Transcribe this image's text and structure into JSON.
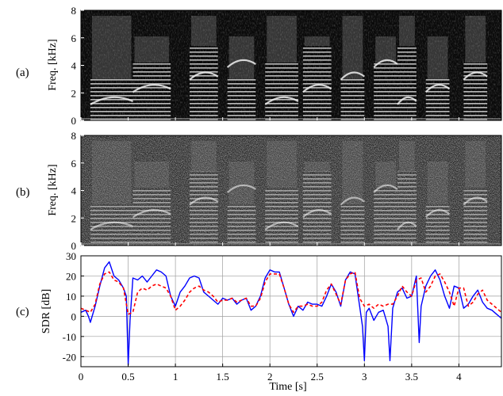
{
  "figure": {
    "panels": [
      {
        "label": "(a)",
        "ylabel": "Freq. [kHz]",
        "yticks": [
          "0",
          "2",
          "4",
          "6",
          "8"
        ]
      },
      {
        "label": "(b)",
        "ylabel": "Freq. [kHz]",
        "yticks": [
          "0",
          "2",
          "4",
          "6",
          "8"
        ]
      },
      {
        "label": "(c)",
        "ylabel": "SDR [dB]",
        "yticks": [
          "-20",
          "-10",
          "0",
          "10",
          "20",
          "30"
        ]
      }
    ],
    "xlabel": "Time [s]",
    "xticks": [
      "0",
      "0.5",
      "1",
      "1.5",
      "2",
      "2.5",
      "3",
      "3.5",
      "4"
    ]
  },
  "chart_data": [
    {
      "type": "heatmap",
      "panel": "(a)",
      "description_visible": "spectrogram",
      "ylabel": "Freq. [kHz]",
      "ylim": [
        0,
        8
      ],
      "xlim": [
        0,
        4.45
      ],
      "colormap": "gray",
      "speech_segments_s": [
        [
          0.1,
          0.55
        ],
        [
          0.55,
          0.95
        ],
        [
          1.15,
          1.45
        ],
        [
          1.55,
          1.85
        ],
        [
          1.95,
          2.3
        ],
        [
          2.35,
          2.65
        ],
        [
          2.75,
          3.0
        ],
        [
          3.1,
          3.35
        ],
        [
          3.35,
          3.55
        ],
        [
          3.65,
          3.9
        ],
        [
          4.05,
          4.3
        ]
      ]
    },
    {
      "type": "heatmap",
      "panel": "(b)",
      "ylabel": "Freq. [kHz]",
      "ylim": [
        0,
        8
      ],
      "xlim": [
        0,
        4.45
      ],
      "colormap": "gray",
      "speech_segments_s": [
        [
          0.1,
          0.55
        ],
        [
          0.55,
          0.95
        ],
        [
          1.15,
          1.45
        ],
        [
          1.55,
          1.85
        ],
        [
          1.95,
          2.3
        ],
        [
          2.35,
          2.65
        ],
        [
          2.75,
          3.0
        ],
        [
          3.1,
          3.35
        ],
        [
          3.35,
          3.55
        ],
        [
          3.65,
          3.9
        ],
        [
          4.05,
          4.3
        ]
      ]
    },
    {
      "type": "line",
      "panel": "(c)",
      "xlabel": "Time [s]",
      "ylabel": "SDR [dB]",
      "xlim": [
        0,
        4.45
      ],
      "ylim": [
        -25,
        30
      ],
      "grid": true,
      "series": [
        {
          "color": "#0000ff",
          "style": "solid",
          "x": [
            0,
            0.05,
            0.08,
            0.1,
            0.15,
            0.2,
            0.25,
            0.3,
            0.35,
            0.4,
            0.45,
            0.48,
            0.5,
            0.52,
            0.55,
            0.6,
            0.65,
            0.7,
            0.75,
            0.8,
            0.85,
            0.9,
            0.95,
            1.0,
            1.05,
            1.1,
            1.15,
            1.2,
            1.25,
            1.3,
            1.35,
            1.4,
            1.45,
            1.5,
            1.55,
            1.6,
            1.65,
            1.7,
            1.75,
            1.8,
            1.85,
            1.9,
            1.95,
            2.0,
            2.05,
            2.1,
            2.15,
            2.2,
            2.25,
            2.3,
            2.35,
            2.4,
            2.45,
            2.5,
            2.55,
            2.6,
            2.65,
            2.7,
            2.75,
            2.8,
            2.85,
            2.9,
            2.95,
            2.98,
            3.0,
            3.02,
            3.05,
            3.1,
            3.15,
            3.2,
            3.25,
            3.27,
            3.3,
            3.35,
            3.4,
            3.45,
            3.5,
            3.55,
            3.58,
            3.6,
            3.65,
            3.7,
            3.75,
            3.8,
            3.85,
            3.9,
            3.95,
            4.0,
            4.05,
            4.1,
            4.15,
            4.2,
            4.25,
            4.3,
            4.35,
            4.4,
            4.45
          ],
          "y": [
            2,
            3,
            0,
            -3,
            5,
            15,
            24,
            27,
            20,
            18,
            14,
            10,
            -24,
            -2,
            19,
            18,
            20,
            17,
            20,
            23,
            22,
            20,
            10,
            5,
            12,
            15,
            19,
            20,
            19,
            12,
            10,
            8,
            6,
            9,
            8,
            9,
            6,
            8,
            9,
            3,
            5,
            10,
            19,
            23,
            22,
            22,
            14,
            6,
            0,
            5,
            3,
            7,
            6,
            6,
            5,
            10,
            16,
            12,
            5,
            18,
            22,
            21,
            5,
            -5,
            -22,
            2,
            4,
            -2,
            2,
            3,
            -5,
            -22,
            4,
            12,
            14,
            9,
            10,
            20,
            -13,
            5,
            15,
            20,
            23,
            18,
            10,
            4,
            15,
            14,
            4,
            6,
            10,
            13,
            7,
            4,
            3,
            1,
            -1
          ]
        },
        {
          "color": "#ff0000",
          "style": "dashed",
          "x": [
            0,
            0.05,
            0.1,
            0.15,
            0.2,
            0.25,
            0.3,
            0.35,
            0.4,
            0.45,
            0.5,
            0.55,
            0.6,
            0.65,
            0.7,
            0.75,
            0.8,
            0.85,
            0.9,
            0.95,
            1.0,
            1.05,
            1.1,
            1.15,
            1.2,
            1.25,
            1.3,
            1.35,
            1.4,
            1.45,
            1.5,
            1.55,
            1.6,
            1.65,
            1.7,
            1.75,
            1.8,
            1.85,
            1.9,
            1.95,
            2.0,
            2.05,
            2.1,
            2.15,
            2.2,
            2.25,
            2.3,
            2.35,
            2.4,
            2.45,
            2.5,
            2.55,
            2.6,
            2.65,
            2.7,
            2.75,
            2.8,
            2.85,
            2.9,
            2.95,
            3.0,
            3.05,
            3.1,
            3.15,
            3.2,
            3.25,
            3.3,
            3.35,
            3.4,
            3.45,
            3.5,
            3.55,
            3.6,
            3.65,
            3.7,
            3.75,
            3.8,
            3.85,
            3.9,
            3.95,
            4.0,
            4.05,
            4.1,
            4.15,
            4.2,
            4.25,
            4.3,
            4.35,
            4.4,
            4.45
          ],
          "y": [
            4,
            3,
            2,
            6,
            16,
            21,
            22,
            18,
            17,
            14,
            1,
            2,
            12,
            14,
            13,
            15,
            16,
            15,
            14,
            10,
            3,
            5,
            8,
            12,
            14,
            15,
            13,
            12,
            10,
            7,
            8,
            8,
            9,
            7,
            8,
            9,
            5,
            5,
            9,
            17,
            21,
            21,
            21,
            14,
            6,
            2,
            5,
            5,
            6,
            5,
            5,
            7,
            13,
            16,
            11,
            6,
            18,
            21,
            22,
            9,
            5,
            6,
            4,
            6,
            5,
            6,
            6,
            10,
            15,
            12,
            10,
            18,
            19,
            12,
            15,
            20,
            21,
            17,
            12,
            5,
            14,
            14,
            5,
            7,
            11,
            13,
            8,
            6,
            4,
            2
          ]
        }
      ]
    }
  ]
}
